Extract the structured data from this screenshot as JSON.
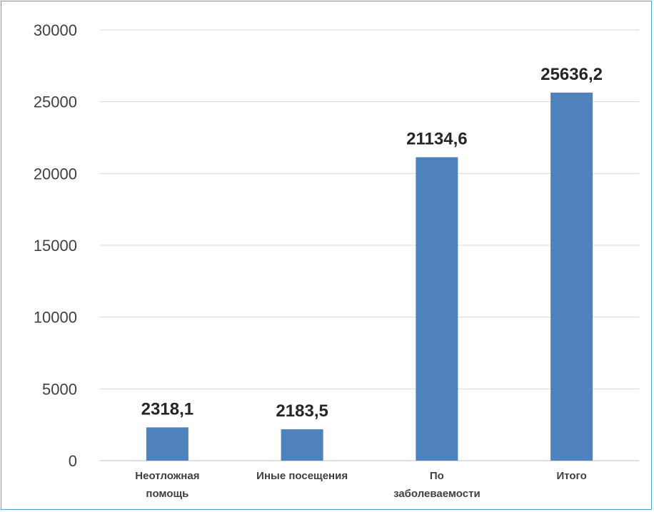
{
  "chart_data": {
    "type": "bar",
    "categories": [
      [
        "Неотложная",
        "помощь"
      ],
      [
        "Иные посещения"
      ],
      [
        "По",
        "заболеваемости"
      ],
      [
        "Итого"
      ]
    ],
    "values": [
      2318.1,
      2183.5,
      21134.6,
      25636.2
    ],
    "data_labels": [
      "2318,1",
      "2183,5",
      "21134,6",
      "25636,2"
    ],
    "yticks": [
      0,
      5000,
      10000,
      15000,
      20000,
      25000,
      30000
    ],
    "ylim": [
      0,
      30000
    ],
    "grid": true,
    "colors": {
      "bar": "#4f81bd",
      "grid": "#d9d9d9",
      "frame": "#4aa8c4"
    }
  }
}
